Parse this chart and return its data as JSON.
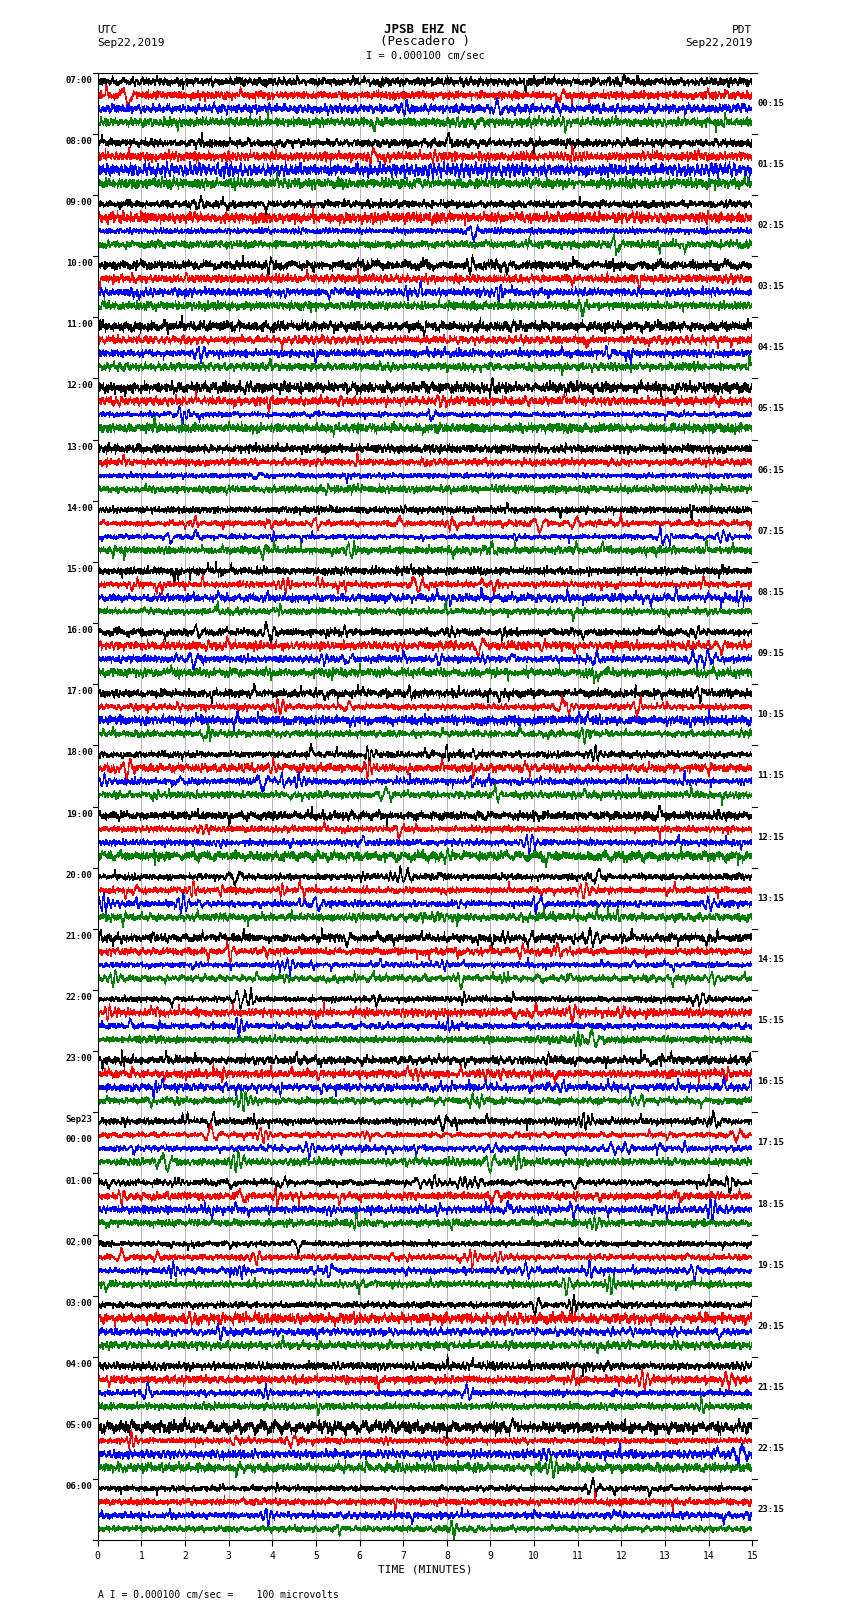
{
  "title_line1": "JPSB EHZ NC",
  "title_line2": "(Pescadero )",
  "scale_label": "I = 0.000100 cm/sec",
  "bottom_label": "A I = 0.000100 cm/sec =    100 microvolts",
  "utc_label": "UTC",
  "utc_date": "Sep22,2019",
  "pdt_label": "PDT",
  "pdt_date": "Sep22,2019",
  "xlabel": "TIME (MINUTES)",
  "left_times": [
    "07:00",
    "08:00",
    "09:00",
    "10:00",
    "11:00",
    "12:00",
    "13:00",
    "14:00",
    "15:00",
    "16:00",
    "17:00",
    "18:00",
    "19:00",
    "20:00",
    "21:00",
    "22:00",
    "23:00",
    "Sep23",
    "01:00",
    "02:00",
    "03:00",
    "04:00",
    "05:00",
    "06:00"
  ],
  "left_times_sub": [
    "",
    "",
    "",
    "",
    "",
    "",
    "",
    "",
    "",
    "",
    "",
    "",
    "",
    "",
    "",
    "",
    "",
    "00:00",
    "",
    "",
    "",
    "",
    "",
    ""
  ],
  "right_times": [
    "00:15",
    "01:15",
    "02:15",
    "03:15",
    "04:15",
    "05:15",
    "06:15",
    "07:15",
    "08:15",
    "09:15",
    "10:15",
    "11:15",
    "12:15",
    "13:15",
    "14:15",
    "15:15",
    "16:15",
    "17:15",
    "18:15",
    "19:15",
    "20:15",
    "21:15",
    "22:15",
    "23:15"
  ],
  "num_rows": 24,
  "traces_per_row": 4,
  "trace_colors": [
    "black",
    "red",
    "blue",
    "green"
  ],
  "minutes": 15,
  "background_color": "white",
  "trace_lw": 0.35,
  "grid_color": "#999999",
  "border_color": "black",
  "seed": 12345
}
